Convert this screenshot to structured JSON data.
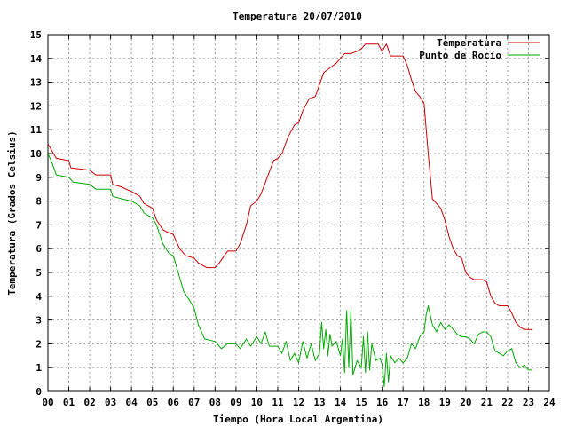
{
  "chart_data": {
    "type": "line",
    "title": "Temperatura 20/07/2010",
    "xlabel": "Tiempo (Hora Local Argentina)",
    "ylabel": "Temperatura (Grados Celsius)",
    "xlim": [
      0,
      24
    ],
    "ylim": [
      0,
      15
    ],
    "grid": true,
    "legend_position": "top-right",
    "x_tick_labels": [
      "00",
      "01",
      "02",
      "03",
      "04",
      "05",
      "06",
      "07",
      "08",
      "09",
      "10",
      "11",
      "12",
      "13",
      "14",
      "15",
      "16",
      "17",
      "18",
      "19",
      "20",
      "21",
      "22",
      "23",
      "24"
    ],
    "y_tick_labels": [
      "0",
      "1",
      "2",
      "3",
      "4",
      "5",
      "6",
      "7",
      "8",
      "9",
      "10",
      "11",
      "12",
      "13",
      "14",
      "15"
    ],
    "series": [
      {
        "name": "Temperatura",
        "color": "#cc0000",
        "x": [
          0,
          0.2,
          0.4,
          1.0,
          1.1,
          2.0,
          2.3,
          3.0,
          3.1,
          3.5,
          4.0,
          4.4,
          4.6,
          5.0,
          5.2,
          5.5,
          5.7,
          6.0,
          6.3,
          6.6,
          7.0,
          7.2,
          7.6,
          8.0,
          8.2,
          8.6,
          9.0,
          9.2,
          9.5,
          9.7,
          10.0,
          10.2,
          10.5,
          10.8,
          11.0,
          11.2,
          11.5,
          11.8,
          12.0,
          12.2,
          12.5,
          12.8,
          13.0,
          13.2,
          13.5,
          13.8,
          14.0,
          14.2,
          14.5,
          14.8,
          15.0,
          15.2,
          15.5,
          15.8,
          16.0,
          16.2,
          16.4,
          16.6,
          16.8,
          17.0,
          17.2,
          17.4,
          17.6,
          17.8,
          18.0,
          18.2,
          18.4,
          18.6,
          18.8,
          19.0,
          19.2,
          19.4,
          19.6,
          19.8,
          20.0,
          20.2,
          20.4,
          20.6,
          20.8,
          21.0,
          21.2,
          21.4,
          21.6,
          21.8,
          22.0,
          22.2,
          22.4,
          22.6,
          22.8,
          23.0,
          23.2
        ],
        "values": [
          10.4,
          10.1,
          9.8,
          9.7,
          9.4,
          9.3,
          9.1,
          9.1,
          8.7,
          8.6,
          8.4,
          8.2,
          7.9,
          7.7,
          7.2,
          6.8,
          6.7,
          6.6,
          6.0,
          5.7,
          5.6,
          5.4,
          5.2,
          5.2,
          5.4,
          5.9,
          5.9,
          6.2,
          7.0,
          7.8,
          8.0,
          8.3,
          9.0,
          9.7,
          9.8,
          10.0,
          10.7,
          11.2,
          11.3,
          11.8,
          12.3,
          12.4,
          12.9,
          13.4,
          13.6,
          13.8,
          14.0,
          14.2,
          14.2,
          14.3,
          14.4,
          14.6,
          14.6,
          14.6,
          14.3,
          14.6,
          14.1,
          14.1,
          14.1,
          14.1,
          13.7,
          13.1,
          12.6,
          12.4,
          12.1,
          10.0,
          8.1,
          7.9,
          7.7,
          7.2,
          6.5,
          6.0,
          5.7,
          5.6,
          5.0,
          4.8,
          4.7,
          4.7,
          4.7,
          4.6,
          4.0,
          3.7,
          3.6,
          3.6,
          3.6,
          3.3,
          2.9,
          2.7,
          2.6,
          2.6,
          2.6
        ]
      },
      {
        "name": "Punto de Rocío",
        "color": "#00aa00",
        "x": [
          0,
          0.2,
          0.4,
          1.0,
          1.2,
          2.0,
          2.3,
          3.0,
          3.1,
          3.5,
          4.0,
          4.4,
          4.6,
          5.0,
          5.2,
          5.5,
          5.8,
          6.0,
          6.2,
          6.5,
          6.8,
          7.0,
          7.2,
          7.5,
          8.0,
          8.1,
          8.3,
          8.6,
          9.0,
          9.2,
          9.5,
          9.7,
          10.0,
          10.2,
          10.4,
          10.6,
          11.0,
          11.2,
          11.4,
          11.6,
          11.8,
          12.0,
          12.2,
          12.4,
          12.6,
          12.8,
          13.0,
          13.1,
          13.2,
          13.3,
          13.4,
          13.5,
          13.6,
          13.8,
          14.0,
          14.1,
          14.2,
          14.3,
          14.4,
          14.5,
          14.6,
          14.7,
          14.8,
          15.0,
          15.1,
          15.2,
          15.3,
          15.4,
          15.5,
          15.7,
          15.9,
          16.0,
          16.1,
          16.2,
          16.3,
          16.4,
          16.6,
          16.8,
          17.0,
          17.2,
          17.4,
          17.6,
          17.8,
          18.0,
          18.1,
          18.2,
          18.4,
          18.6,
          18.8,
          19.0,
          19.2,
          19.4,
          19.6,
          19.8,
          20.0,
          20.2,
          20.4,
          20.6,
          20.8,
          21.0,
          21.2,
          21.4,
          21.6,
          21.8,
          22.0,
          22.2,
          22.4,
          22.6,
          22.8,
          23.0,
          23.2
        ],
        "values": [
          10.0,
          9.6,
          9.1,
          9.0,
          8.8,
          8.7,
          8.5,
          8.5,
          8.2,
          8.1,
          8.0,
          7.8,
          7.5,
          7.3,
          7.0,
          6.2,
          5.8,
          5.7,
          5.1,
          4.2,
          3.8,
          3.5,
          2.8,
          2.2,
          2.1,
          2.0,
          1.8,
          2.0,
          2.0,
          1.8,
          2.2,
          1.9,
          2.3,
          2.0,
          2.5,
          1.9,
          1.9,
          1.6,
          2.1,
          1.3,
          1.6,
          1.2,
          2.1,
          1.4,
          2.0,
          1.3,
          1.6,
          2.9,
          1.8,
          2.6,
          1.5,
          2.4,
          1.9,
          2.1,
          1.5,
          2.2,
          0.8,
          3.4,
          1.0,
          3.4,
          0.7,
          1.0,
          1.3,
          1.0,
          2.3,
          0.8,
          2.5,
          0.9,
          2.0,
          1.3,
          1.4,
          1.1,
          0.2,
          1.6,
          0.4,
          1.5,
          1.2,
          1.4,
          1.2,
          1.4,
          2.0,
          1.8,
          2.3,
          2.5,
          3.2,
          3.6,
          2.8,
          2.5,
          2.9,
          2.6,
          2.8,
          2.6,
          2.4,
          2.3,
          2.3,
          2.2,
          2.0,
          2.4,
          2.5,
          2.5,
          2.3,
          1.7,
          1.6,
          1.5,
          1.7,
          1.8,
          1.2,
          1.0,
          1.1,
          0.9,
          0.9
        ]
      }
    ]
  }
}
